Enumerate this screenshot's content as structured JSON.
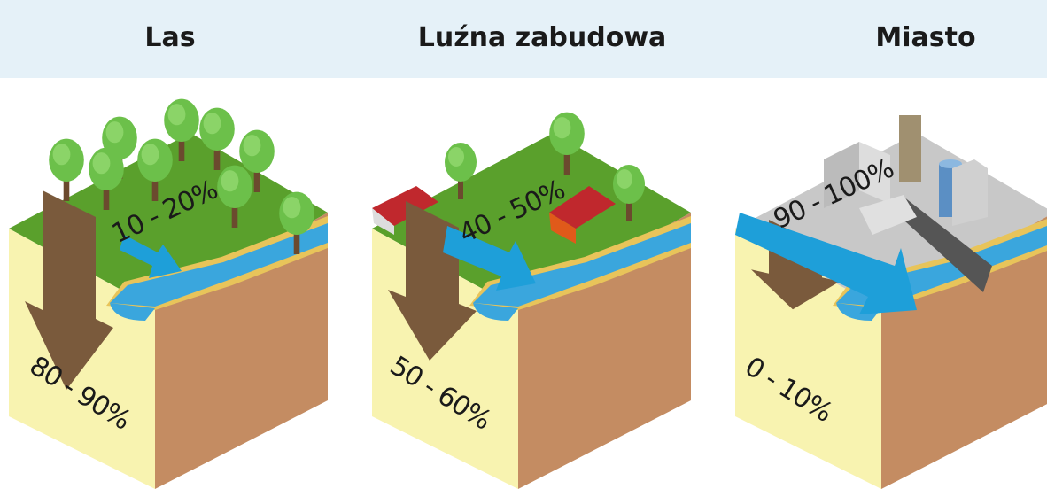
{
  "panels": [
    {
      "title": "Las",
      "runoff": "10 - 20%",
      "infiltration": "80 - 90%"
    },
    {
      "title": "Luźna zabudowa",
      "runoff": "40 - 50%",
      "infiltration": "50 - 60%"
    },
    {
      "title": "Miasto",
      "runoff": "90 - 100%",
      "infiltration": "0 - 10%"
    }
  ]
}
